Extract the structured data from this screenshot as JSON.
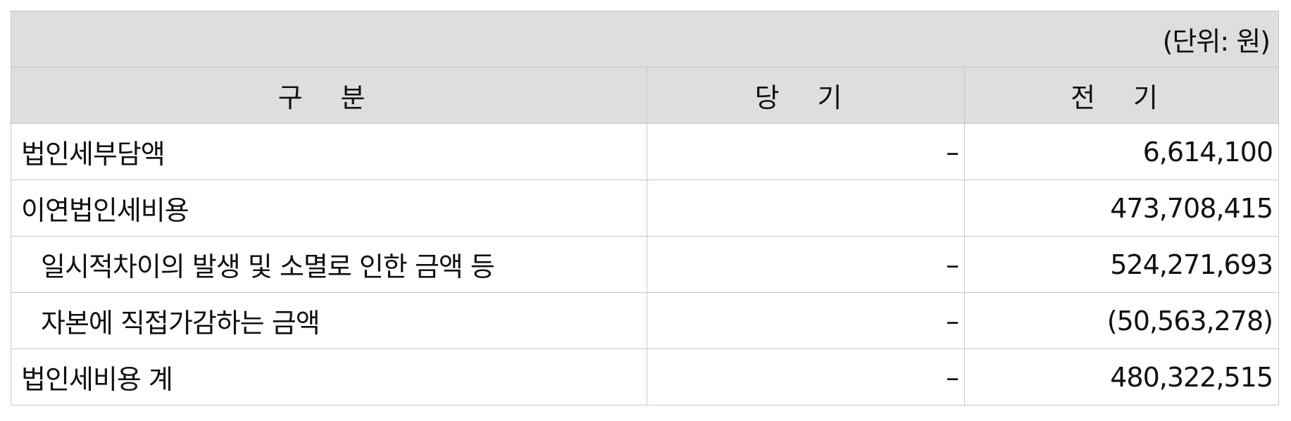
{
  "unit_note": "(단위: 원)",
  "headers": {
    "category": "구 분",
    "current": "당 기",
    "previous": "전 기"
  },
  "rows": [
    {
      "label": "법인세부담액",
      "current": "–",
      "previous": "6,614,100"
    },
    {
      "label": "이연법인세비용",
      "current": "",
      "previous": "473,708,415"
    },
    {
      "label": "일시적차이의 발생 및 소멸로 인한 금액 등",
      "current": "–",
      "previous": "524,271,693"
    },
    {
      "label": "자본에 직접가감하는 금액",
      "current": "–",
      "previous": "(50,563,278)"
    },
    {
      "label": "법인세비용 계",
      "current": "–",
      "previous": "480,322,515"
    }
  ]
}
